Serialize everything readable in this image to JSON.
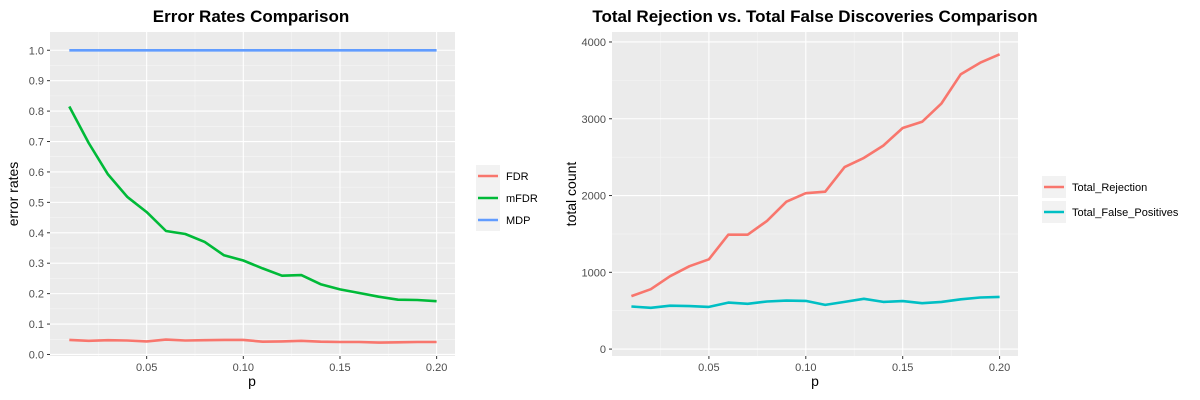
{
  "chart_data": [
    {
      "type": "line",
      "title": "Error Rates Comparison",
      "xlabel": "p",
      "ylabel": "error rates",
      "xlim": [
        0.0,
        0.2095
      ],
      "ylim": [
        -0.005,
        1.06
      ],
      "xticks": [
        0.05,
        0.1,
        0.15,
        0.2
      ],
      "xtick_labels": [
        "0.05",
        "0.10",
        "0.15",
        "0.20"
      ],
      "yticks": [
        0.0,
        0.1,
        0.2,
        0.3,
        0.4,
        0.5,
        0.6,
        0.7,
        0.8,
        0.9,
        1.0
      ],
      "ytick_labels": [
        "0.0",
        "0.1",
        "0.2",
        "0.3",
        "0.4",
        "0.5",
        "0.6",
        "0.7",
        "0.8",
        "0.9",
        "1.0"
      ],
      "grid": true,
      "legend_position": "right",
      "x": [
        0.01,
        0.02,
        0.03,
        0.04,
        0.05,
        0.06,
        0.07,
        0.08,
        0.09,
        0.1,
        0.11,
        0.12,
        0.13,
        0.14,
        0.15,
        0.16,
        0.17,
        0.18,
        0.19,
        0.2
      ],
      "series": [
        {
          "name": "FDR",
          "color": "#F8766D",
          "values": [
            0.048,
            0.045,
            0.047,
            0.046,
            0.043,
            0.049,
            0.046,
            0.047,
            0.048,
            0.048,
            0.042,
            0.043,
            0.045,
            0.042,
            0.041,
            0.041,
            0.039,
            0.04,
            0.041,
            0.041
          ]
        },
        {
          "name": "mFDR",
          "color": "#00BA38",
          "values": [
            0.815,
            0.695,
            0.592,
            0.518,
            0.468,
            0.406,
            0.396,
            0.37,
            0.326,
            0.309,
            0.283,
            0.259,
            0.261,
            0.231,
            0.214,
            0.202,
            0.19,
            0.18,
            0.179,
            0.175
          ]
        },
        {
          "name": "MDP",
          "color": "#619CFF",
          "values": [
            1.0,
            1.0,
            1.0,
            1.0,
            1.0,
            1.0,
            1.0,
            1.0,
            1.0,
            1.0,
            1.0,
            1.0,
            1.0,
            1.0,
            1.0,
            1.0,
            1.0,
            1.0,
            1.0,
            1.0
          ]
        }
      ]
    },
    {
      "type": "line",
      "title": "Total Rejection vs. Total False Discoveries Comparison",
      "xlabel": "p",
      "ylabel": "total count",
      "xlim": [
        0.0,
        0.2095
      ],
      "ylim": [
        -90,
        4130
      ],
      "xticks": [
        0.05,
        0.1,
        0.15,
        0.2
      ],
      "xtick_labels": [
        "0.05",
        "0.10",
        "0.15",
        "0.20"
      ],
      "yticks": [
        0,
        1000,
        2000,
        3000,
        4000
      ],
      "ytick_labels": [
        "0",
        "1000",
        "2000",
        "3000",
        "4000"
      ],
      "grid": true,
      "legend_position": "right",
      "x": [
        0.01,
        0.02,
        0.03,
        0.04,
        0.05,
        0.06,
        0.07,
        0.08,
        0.09,
        0.1,
        0.11,
        0.12,
        0.13,
        0.14,
        0.15,
        0.16,
        0.17,
        0.18,
        0.19,
        0.2
      ],
      "series": [
        {
          "name": "Total_Rejection",
          "color": "#F8766D",
          "values": [
            690,
            780,
            950,
            1080,
            1170,
            1490,
            1490,
            1670,
            1920,
            2030,
            2050,
            2370,
            2490,
            2650,
            2880,
            2960,
            3200,
            3580,
            3730,
            3840
          ]
        },
        {
          "name": "Total_False_Positives",
          "color": "#00BFC4",
          "values": [
            555,
            538,
            565,
            560,
            550,
            605,
            590,
            620,
            632,
            628,
            575,
            615,
            655,
            615,
            625,
            598,
            615,
            648,
            672,
            680
          ]
        }
      ]
    }
  ]
}
